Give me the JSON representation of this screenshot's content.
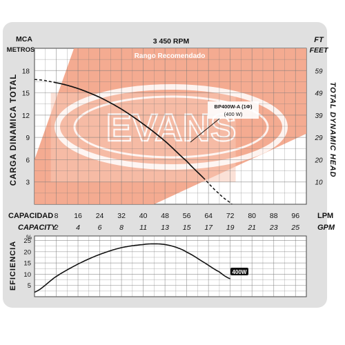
{
  "colors": {
    "card_background": "#e0e0e0",
    "plot_background": "#ffffff",
    "recommended_range": "#f3a488",
    "recommended_range_light": "#f8c9b6",
    "logo_outline": "#ffffff",
    "curve": "#111111",
    "grid": "#777777",
    "badge_bg": "#111111",
    "badge_text": "#ffffff"
  },
  "logo": {
    "text": "EVANS",
    "icon": "evans-oval-logo-watermark"
  },
  "header": {
    "left_unit": "MCA",
    "left_unit_sub": "METROS",
    "speed": "3 450 RPM",
    "right_unit": "FT",
    "right_unit_sub": "FEET"
  },
  "chart_data": [
    {
      "type": "line",
      "title": "3 450 RPM",
      "ylabel": "CARGA DINAMICA TOTAL",
      "ylabel_right": "TOTAL DYNAMIC HEAD",
      "xlabel": "CAPACIDAD",
      "xlabel_alt": "CAPACITY",
      "x_units": "LPM",
      "x_units_alt": "GPM",
      "y_units": "MCA METROS",
      "y_units_alt": "FT FEET",
      "xlim": [
        0,
        100
      ],
      "ylim": [
        0,
        21
      ],
      "x_ticks": [
        8,
        16,
        24,
        32,
        40,
        48,
        56,
        64,
        72,
        80,
        88,
        96
      ],
      "x_ticks_alt": [
        2,
        4,
        6,
        8,
        11,
        13,
        15,
        17,
        19,
        21,
        23,
        25
      ],
      "y_ticks": [
        3,
        6,
        9,
        12,
        15,
        18
      ],
      "y_ticks_right": [
        10,
        20,
        29,
        39,
        49,
        59
      ],
      "grid": true,
      "recommended_range_label": "Rango Recomendado",
      "curve_label": "BP400W-A (1Φ)",
      "curve_sublabel": "(400 W)",
      "series": [
        {
          "name": "BP400W-A (1Φ)",
          "x": [
            0,
            6,
            15,
            24,
            32,
            40,
            48,
            56,
            62,
            68,
            72,
            76
          ],
          "y": [
            16.8,
            16.5,
            15.7,
            14.4,
            12.8,
            10.8,
            8.5,
            5.8,
            3.6,
            1.4,
            0.2,
            -1.0
          ],
          "solid_x_range": [
            7,
            62
          ]
        }
      ],
      "recommended_range": {
        "upper": [
          [
            0,
            6
          ],
          [
            15,
            21.5
          ]
        ],
        "lower": [
          [
            44,
            0
          ],
          [
            100,
            9.5
          ]
        ]
      }
    },
    {
      "type": "line",
      "ylabel": "EFICIENCIA",
      "y_units": "%",
      "xlim": [
        0,
        100
      ],
      "ylim": [
        0,
        27
      ],
      "y_ticks": [
        5,
        10,
        15,
        20,
        25
      ],
      "grid": true,
      "series": [
        {
          "name": "400W",
          "x": [
            0,
            8,
            16,
            24,
            32,
            40,
            44,
            48,
            52,
            56,
            62,
            68,
            72
          ],
          "y": [
            2.0,
            9.0,
            14.5,
            18.8,
            21.8,
            23.2,
            23.5,
            23.2,
            22.0,
            19.8,
            15.5,
            11.0,
            8.0
          ]
        }
      ]
    }
  ]
}
